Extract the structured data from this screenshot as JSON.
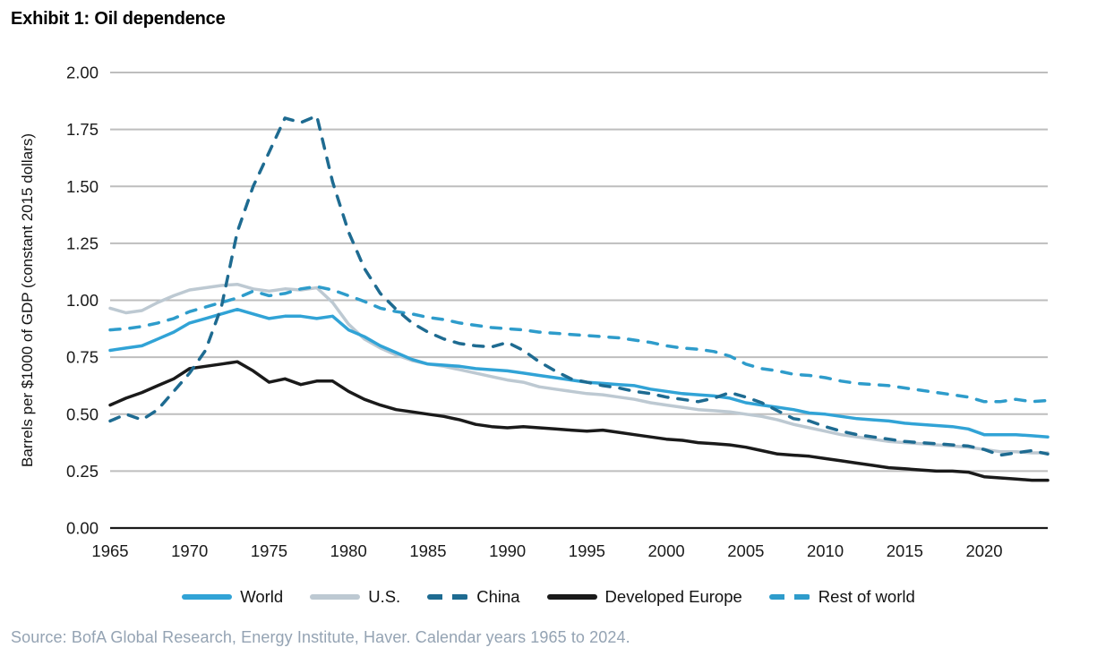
{
  "title": "Exhibit 1: Oil dependence",
  "source": "Source: BofA Global Research, Energy Institute, Haver. Calendar years 1965 to 2024.",
  "colors": {
    "world": "#31a3d6",
    "us": "#bdc9d2",
    "china": "#1e6b91",
    "developed_europe": "#1a1a1a",
    "rest_of_world": "#2e9ccb",
    "gridline": "#bebebe",
    "axis": "#1a1a1a",
    "tick_text": "#1a1a1a",
    "source_text": "#94a3b3"
  },
  "chart_data": {
    "type": "line",
    "title": "Exhibit 1: Oil dependence",
    "xlabel": "",
    "ylabel": "Barrels per $1000 of GDP (constant 2015 dollars)",
    "ylim": [
      0,
      2.0
    ],
    "grid": "horizontal",
    "legend_position": "bottom",
    "y_ticks": [
      "2.00",
      "1.75",
      "1.50",
      "1.25",
      "1.00",
      "0.75",
      "0.50",
      "0.25",
      "0.00"
    ],
    "x_ticks": [
      1965,
      1970,
      1975,
      1980,
      1985,
      1990,
      1995,
      2000,
      2005,
      2010,
      2015,
      2020
    ],
    "x_range": [
      1965,
      2024
    ],
    "x": [
      1965,
      1966,
      1967,
      1968,
      1969,
      1970,
      1971,
      1972,
      1973,
      1974,
      1975,
      1976,
      1977,
      1978,
      1979,
      1980,
      1981,
      1982,
      1983,
      1984,
      1985,
      1986,
      1987,
      1988,
      1989,
      1990,
      1991,
      1992,
      1993,
      1994,
      1995,
      1996,
      1997,
      1998,
      1999,
      2000,
      2001,
      2002,
      2003,
      2004,
      2005,
      2006,
      2007,
      2008,
      2009,
      2010,
      2011,
      2012,
      2013,
      2014,
      2015,
      2016,
      2017,
      2018,
      2019,
      2020,
      2021,
      2022,
      2023,
      2024
    ],
    "series": [
      {
        "name": "World",
        "color": "#31a3d6",
        "dash": false,
        "values": [
          0.78,
          0.79,
          0.8,
          0.83,
          0.86,
          0.9,
          0.92,
          0.94,
          0.96,
          0.94,
          0.92,
          0.93,
          0.93,
          0.92,
          0.93,
          0.87,
          0.84,
          0.8,
          0.77,
          0.74,
          0.72,
          0.715,
          0.71,
          0.7,
          0.695,
          0.69,
          0.68,
          0.67,
          0.66,
          0.65,
          0.64,
          0.635,
          0.63,
          0.625,
          0.61,
          0.6,
          0.59,
          0.585,
          0.58,
          0.57,
          0.55,
          0.54,
          0.53,
          0.52,
          0.505,
          0.5,
          0.49,
          0.48,
          0.475,
          0.47,
          0.46,
          0.455,
          0.45,
          0.445,
          0.435,
          0.41,
          0.41,
          0.41,
          0.405,
          0.4
        ]
      },
      {
        "name": "U.S.",
        "color": "#bdc9d2",
        "dash": false,
        "values": [
          0.965,
          0.945,
          0.955,
          0.99,
          1.02,
          1.045,
          1.055,
          1.065,
          1.07,
          1.05,
          1.04,
          1.05,
          1.045,
          1.055,
          0.99,
          0.895,
          0.83,
          0.79,
          0.76,
          0.735,
          0.72,
          0.71,
          0.695,
          0.68,
          0.665,
          0.65,
          0.64,
          0.62,
          0.61,
          0.6,
          0.59,
          0.585,
          0.575,
          0.565,
          0.55,
          0.54,
          0.53,
          0.52,
          0.515,
          0.51,
          0.5,
          0.49,
          0.475,
          0.455,
          0.44,
          0.425,
          0.41,
          0.4,
          0.39,
          0.38,
          0.375,
          0.37,
          0.365,
          0.36,
          0.355,
          0.345,
          0.335,
          0.335,
          0.33,
          0.33
        ]
      },
      {
        "name": "China",
        "color": "#1e6b91",
        "dash": true,
        "values": [
          0.47,
          0.5,
          0.475,
          0.52,
          0.6,
          0.68,
          0.78,
          0.97,
          1.3,
          1.5,
          1.65,
          1.8,
          1.78,
          1.81,
          1.52,
          1.3,
          1.14,
          1.03,
          0.96,
          0.9,
          0.86,
          0.83,
          0.81,
          0.8,
          0.795,
          0.815,
          0.78,
          0.73,
          0.69,
          0.655,
          0.64,
          0.625,
          0.615,
          0.6,
          0.59,
          0.575,
          0.565,
          0.555,
          0.57,
          0.595,
          0.575,
          0.55,
          0.515,
          0.48,
          0.47,
          0.445,
          0.425,
          0.41,
          0.4,
          0.39,
          0.38,
          0.375,
          0.37,
          0.365,
          0.36,
          0.345,
          0.32,
          0.33,
          0.34,
          0.325
        ]
      },
      {
        "name": "Developed Europe",
        "color": "#1a1a1a",
        "dash": false,
        "values": [
          0.54,
          0.57,
          0.595,
          0.625,
          0.655,
          0.7,
          0.71,
          0.72,
          0.73,
          0.69,
          0.64,
          0.655,
          0.63,
          0.645,
          0.645,
          0.6,
          0.565,
          0.54,
          0.52,
          0.51,
          0.5,
          0.49,
          0.475,
          0.455,
          0.445,
          0.44,
          0.445,
          0.44,
          0.435,
          0.43,
          0.425,
          0.43,
          0.42,
          0.41,
          0.4,
          0.39,
          0.385,
          0.375,
          0.37,
          0.365,
          0.355,
          0.34,
          0.325,
          0.32,
          0.315,
          0.305,
          0.295,
          0.285,
          0.275,
          0.265,
          0.26,
          0.255,
          0.25,
          0.25,
          0.245,
          0.225,
          0.22,
          0.215,
          0.21,
          0.21
        ]
      },
      {
        "name": "Rest of world",
        "color": "#2e9ccb",
        "dash": true,
        "values": [
          0.87,
          0.875,
          0.885,
          0.9,
          0.92,
          0.95,
          0.97,
          0.99,
          1.01,
          1.04,
          1.02,
          1.03,
          1.05,
          1.06,
          1.045,
          1.02,
          0.995,
          0.965,
          0.95,
          0.94,
          0.925,
          0.915,
          0.9,
          0.89,
          0.88,
          0.875,
          0.87,
          0.86,
          0.855,
          0.85,
          0.845,
          0.84,
          0.835,
          0.825,
          0.815,
          0.8,
          0.79,
          0.785,
          0.775,
          0.755,
          0.72,
          0.7,
          0.69,
          0.675,
          0.67,
          0.66,
          0.645,
          0.635,
          0.63,
          0.625,
          0.615,
          0.605,
          0.595,
          0.585,
          0.575,
          0.555,
          0.555,
          0.565,
          0.555,
          0.56
        ]
      }
    ]
  }
}
